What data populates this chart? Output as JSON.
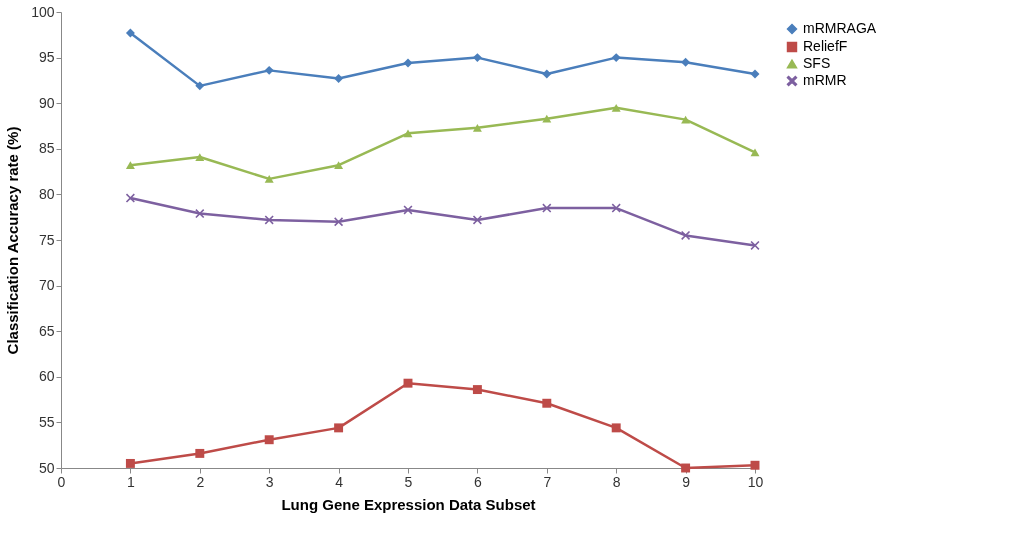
{
  "chart_data": {
    "type": "line",
    "xlabel": "Lung Gene Expression Data Subset",
    "ylabel": "Classification Accuracy rate (%)",
    "x": [
      1,
      2,
      3,
      4,
      5,
      6,
      7,
      8,
      9,
      10
    ],
    "xlim": [
      0,
      10
    ],
    "xticks": [
      0,
      1,
      2,
      3,
      4,
      5,
      6,
      7,
      8,
      9,
      10
    ],
    "ylim": [
      50,
      100
    ],
    "yticks": [
      50,
      55,
      60,
      65,
      70,
      75,
      80,
      85,
      90,
      95,
      100
    ],
    "grid": false,
    "legend": "right",
    "series": [
      {
        "name": "mRMRAGA",
        "color": "#4a7ebb",
        "marker": "diamond",
        "values": [
          97.7,
          91.9,
          93.6,
          92.7,
          94.4,
          95.0,
          93.2,
          95.0,
          94.5,
          93.2
        ]
      },
      {
        "name": "ReliefF",
        "color": "#be4b48",
        "marker": "square",
        "values": [
          50.5,
          51.6,
          53.1,
          54.4,
          59.3,
          58.6,
          57.1,
          54.4,
          50.0,
          50.3
        ]
      },
      {
        "name": "SFS",
        "color": "#98b954",
        "marker": "triangle",
        "values": [
          83.2,
          84.1,
          81.7,
          83.2,
          86.7,
          87.3,
          88.3,
          89.5,
          88.2,
          84.6
        ]
      },
      {
        "name": "mRMR",
        "color": "#7d60a0",
        "marker": "cross",
        "values": [
          79.6,
          77.9,
          77.2,
          77.0,
          78.3,
          77.2,
          78.5,
          78.5,
          75.5,
          74.4
        ]
      }
    ]
  }
}
